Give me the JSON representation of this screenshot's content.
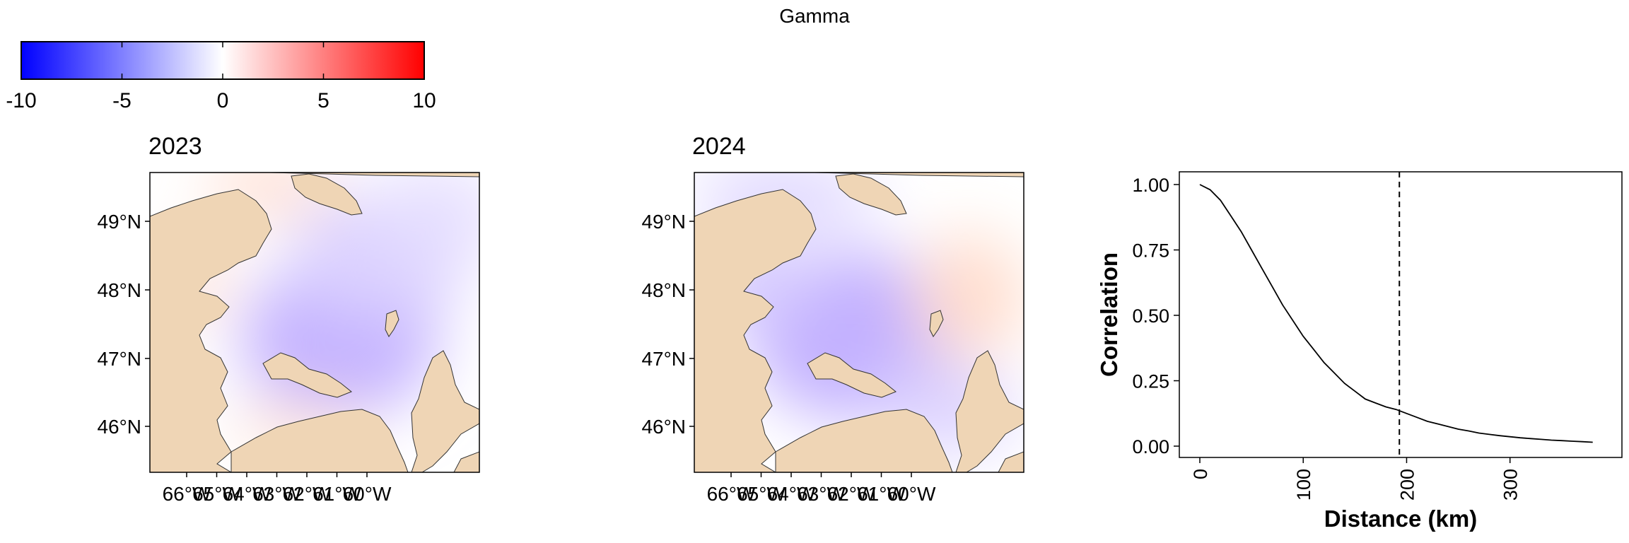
{
  "figure": {
    "title": "Gamma"
  },
  "colorbar": {
    "min": -10,
    "max": 10,
    "ticks": [
      "-10",
      "-5",
      "0",
      "5",
      "10"
    ],
    "tick_values": [
      -10,
      -5,
      0,
      5,
      10
    ],
    "colors": {
      "low": "#0000ff",
      "mid": "#ffffff",
      "high": "#ff0000"
    }
  },
  "maps": {
    "lat_ticks": [
      "49°N",
      "48°N",
      "47°N",
      "46°N"
    ],
    "lon_ticks": [
      "66°W",
      "65°W",
      "64°W",
      "63°W",
      "62°W",
      "61°W",
      "60°W"
    ],
    "land_color": "#efd5b5",
    "panels": [
      {
        "title": "2023"
      },
      {
        "title": "2024"
      }
    ]
  },
  "chart_data": {
    "type": "line",
    "xlabel": "Distance (km)",
    "ylabel": "Correlation",
    "xlim": [
      0,
      385
    ],
    "ylim": [
      0,
      1.05
    ],
    "x_ticks": [
      "0",
      "100",
      "200",
      "300"
    ],
    "x_tick_values": [
      0,
      100,
      200,
      300
    ],
    "y_ticks": [
      "0.00",
      "0.25",
      "0.50",
      "0.75",
      "1.00"
    ],
    "y_tick_values": [
      0,
      0.25,
      0.5,
      0.75,
      1.0
    ],
    "x": [
      0,
      10,
      20,
      30,
      40,
      50,
      60,
      70,
      80,
      90,
      100,
      110,
      120,
      130,
      140,
      150,
      160,
      170,
      180,
      190,
      200,
      210,
      220,
      230,
      240,
      250,
      260,
      270,
      280,
      290,
      300,
      310,
      320,
      330,
      340,
      350,
      360,
      370,
      380
    ],
    "y": [
      1.0,
      0.98,
      0.94,
      0.88,
      0.82,
      0.75,
      0.68,
      0.61,
      0.54,
      0.48,
      0.42,
      0.37,
      0.32,
      0.28,
      0.24,
      0.21,
      0.18,
      0.165,
      0.15,
      0.14,
      0.125,
      0.11,
      0.095,
      0.085,
      0.075,
      0.065,
      0.058,
      0.05,
      0.045,
      0.04,
      0.036,
      0.032,
      0.029,
      0.026,
      0.023,
      0.021,
      0.019,
      0.017,
      0.015
    ],
    "vline_x": 193,
    "vline_style": "dashed"
  }
}
